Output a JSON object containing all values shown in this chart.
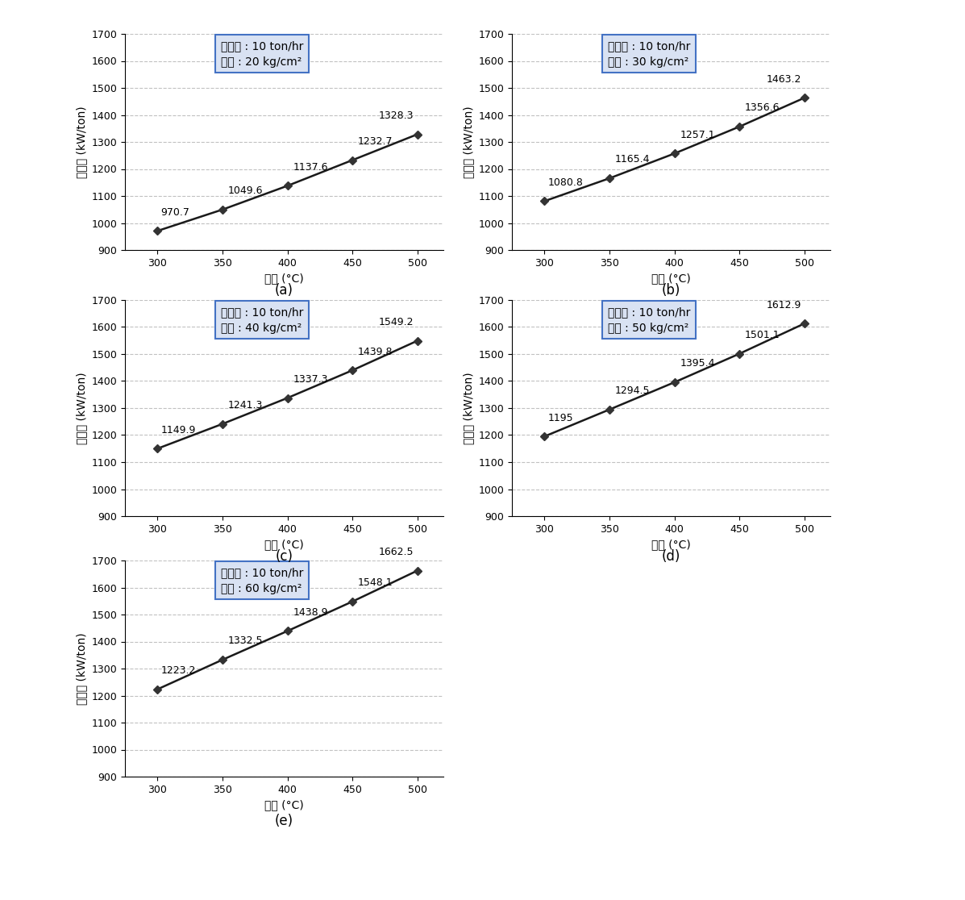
{
  "panels": [
    {
      "label": "(a)",
      "x": [
        300,
        350,
        400,
        450,
        500
      ],
      "y": [
        970.7,
        1049.6,
        1137.6,
        1232.7,
        1328.3
      ],
      "legend_line1": "증기량 : 10 ton/hr",
      "legend_line2": "압력 : 20 kg/cm²"
    },
    {
      "label": "(b)",
      "x": [
        300,
        350,
        400,
        450,
        500
      ],
      "y": [
        1080.8,
        1165.4,
        1257.1,
        1356.6,
        1463.2
      ],
      "legend_line1": "증기량 : 10 ton/hr",
      "legend_line2": "압력 : 30 kg/cm²"
    },
    {
      "label": "(c)",
      "x": [
        300,
        350,
        400,
        450,
        500
      ],
      "y": [
        1149.9,
        1241.3,
        1337.3,
        1439.8,
        1549.2
      ],
      "legend_line1": "증기량 : 10 ton/hr",
      "legend_line2": "압력 : 40 kg/cm²"
    },
    {
      "label": "(d)",
      "x": [
        300,
        350,
        400,
        450,
        500
      ],
      "y": [
        1195.0,
        1294.5,
        1395.4,
        1501.1,
        1612.9
      ],
      "legend_line1": "증기량 : 10 ton/hr",
      "legend_line2": "압력 : 50 kg/cm²"
    },
    {
      "label": "(e)",
      "x": [
        300,
        350,
        400,
        450,
        500
      ],
      "y": [
        1223.2,
        1332.5,
        1438.9,
        1548.1,
        1662.5
      ],
      "legend_line1": "증기량 : 10 ton/hr",
      "legend_line2": "압력 : 60 kg/cm²"
    }
  ],
  "ylim": [
    900,
    1700
  ],
  "yticks": [
    900,
    1000,
    1100,
    1200,
    1300,
    1400,
    1500,
    1600,
    1700
  ],
  "xlim": [
    275,
    520
  ],
  "xticks": [
    300,
    350,
    400,
    450,
    500
  ],
  "xlabel": "온도 (°C)",
  "ylabel": "발전량 (kW/ton)",
  "line_color": "#1a1a1a",
  "marker": "D",
  "marker_size": 5,
  "marker_facecolor": "#333333",
  "grid_color": "#999999",
  "grid_linestyle": "--",
  "grid_alpha": 0.6,
  "box_facecolor": "#d9e2f3",
  "box_edgecolor": "#4472c4",
  "panel_label_fontsize": 12,
  "annotation_fontsize": 9,
  "tick_fontsize": 9,
  "legend_fontsize": 10,
  "axis_label_fontsize": 10
}
